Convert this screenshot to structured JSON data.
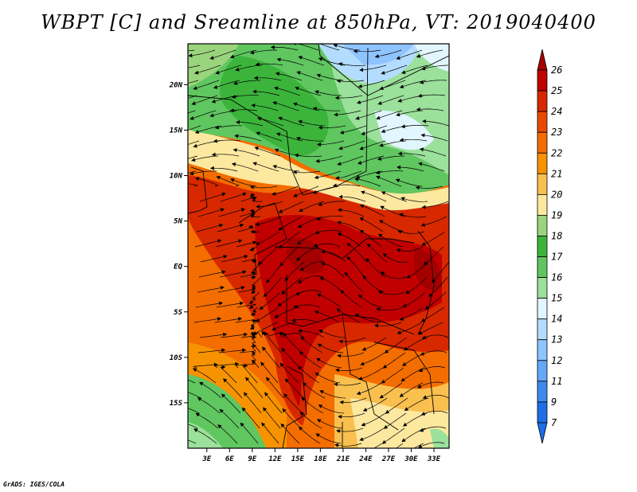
{
  "title": "WBPT [C] and Sreamline at 850hPa, VT: 2019040400",
  "credit": "GrADS: IGES/COLA",
  "map": {
    "lat_labels": [
      "20N",
      "15N",
      "10N",
      "5N",
      "EQ",
      "5S",
      "10S",
      "15S"
    ],
    "lat_values": [
      20,
      15,
      10,
      5,
      0,
      -5,
      -10,
      -15
    ],
    "lon_labels": [
      "3E",
      "6E",
      "9E",
      "12E",
      "15E",
      "18E",
      "21E",
      "24E",
      "27E",
      "30E",
      "33E"
    ],
    "lon_values": [
      3,
      6,
      9,
      12,
      15,
      18,
      21,
      24,
      27,
      30,
      33
    ],
    "lon_range": [
      0.5,
      35
    ],
    "lat_range": [
      -20,
      24.5
    ]
  },
  "colorbar": {
    "labels": [
      "26",
      "25",
      "24",
      "23",
      "22",
      "21",
      "20",
      "19",
      "18",
      "17",
      "16",
      "15",
      "14",
      "13",
      "12",
      "11",
      "9",
      "7"
    ],
    "colors": {
      "c26": "#a50000",
      "c25": "#c00000",
      "c24": "#d82800",
      "c23": "#ea4a00",
      "c22": "#f46d00",
      "c21": "#f79200",
      "c20": "#f9c050",
      "c19": "#fde8a0",
      "c18": "#9ad47c",
      "c17": "#3cb43c",
      "c16": "#60c660",
      "c15": "#9be09b",
      "c14": "#e2f6ff",
      "c13": "#b4dcff",
      "c12": "#8ec4ff",
      "c11": "#64a8fa",
      "c9": "#3c8af0",
      "c7": "#1e6ee6"
    }
  }
}
